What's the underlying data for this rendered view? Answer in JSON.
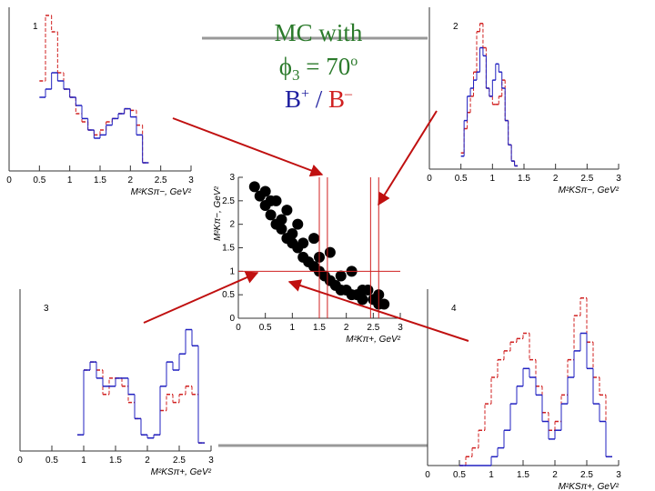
{
  "header": {
    "line1": "MC with",
    "phi": "ϕ",
    "phi_sub": "3",
    "phi_rest": " = 70",
    "phi_sup": "o",
    "b_plus": "B",
    "b_plus_sup": "+",
    "slash": " / ",
    "b_minus": "B",
    "b_minus_sup": "–"
  },
  "chart_data": [
    {
      "type": "histogram",
      "label": "1",
      "xlabel": "M²KSπ−, GeV²",
      "xlim": [
        0,
        3
      ],
      "ylim": [
        0,
        1
      ],
      "xticks": [
        0,
        0.5,
        1,
        1.5,
        2,
        2.5,
        3
      ],
      "bins": [
        0.5,
        0.6,
        0.7,
        0.8,
        0.9,
        1.0,
        1.1,
        1.2,
        1.3,
        1.4,
        1.5,
        1.6,
        1.7,
        1.8,
        1.9,
        2.0,
        2.1,
        2.2,
        2.3
      ],
      "series": [
        {
          "color": "#d02020",
          "values": [
            0.55,
            0.95,
            0.85,
            0.6,
            0.5,
            0.45,
            0.35,
            0.3,
            0.25,
            0.22,
            0.25,
            0.3,
            0.32,
            0.35,
            0.38,
            0.37,
            0.28,
            0.05
          ]
        },
        {
          "color": "#2020c0",
          "values": [
            0.45,
            0.5,
            0.6,
            0.55,
            0.5,
            0.45,
            0.4,
            0.32,
            0.25,
            0.2,
            0.22,
            0.28,
            0.32,
            0.35,
            0.38,
            0.33,
            0.22,
            0.05
          ]
        }
      ]
    },
    {
      "type": "histogram",
      "label": "2",
      "xlabel": "M²KSπ−, GeV²",
      "xlim": [
        0,
        3
      ],
      "ylim": [
        0,
        1
      ],
      "xticks": [
        0,
        0.5,
        1,
        1.5,
        2,
        2.5,
        3
      ],
      "bins": [
        0.5,
        0.55,
        0.6,
        0.65,
        0.7,
        0.75,
        0.8,
        0.85,
        0.9,
        0.95,
        1.0,
        1.05,
        1.1,
        1.15,
        1.2,
        1.25,
        1.3,
        1.35,
        1.4
      ],
      "series": [
        {
          "color": "#d02020",
          "values": [
            0.1,
            0.25,
            0.35,
            0.45,
            0.6,
            0.85,
            0.9,
            0.75,
            0.5,
            0.45,
            0.4,
            0.4,
            0.45,
            0.55,
            0.3,
            0.15,
            0.05,
            0.02
          ]
        },
        {
          "color": "#2020c0",
          "values": [
            0.08,
            0.3,
            0.45,
            0.5,
            0.55,
            0.6,
            0.75,
            0.7,
            0.5,
            0.45,
            0.55,
            0.65,
            0.6,
            0.5,
            0.3,
            0.15,
            0.05,
            0.02
          ]
        }
      ]
    },
    {
      "type": "histogram",
      "label": "3",
      "xlabel": "M²KSπ+, GeV²",
      "xlim": [
        0,
        3
      ],
      "ylim": [
        0,
        1
      ],
      "xticks": [
        0,
        0.5,
        1,
        1.5,
        2,
        2.5,
        3
      ],
      "bins": [
        0.9,
        1.0,
        1.1,
        1.2,
        1.3,
        1.4,
        1.5,
        1.6,
        1.7,
        1.8,
        1.9,
        2.0,
        2.1,
        2.2,
        2.3,
        2.4,
        2.5,
        2.6,
        2.7,
        2.8,
        2.9
      ],
      "series": [
        {
          "color": "#d02020",
          "values": [
            0.1,
            0.5,
            0.55,
            0.5,
            0.35,
            0.45,
            0.45,
            0.4,
            0.3,
            0.2,
            0.1,
            0.08,
            0.1,
            0.25,
            0.35,
            0.3,
            0.35,
            0.4,
            0.35,
            0.05
          ]
        },
        {
          "color": "#2020c0",
          "values": [
            0.1,
            0.5,
            0.55,
            0.45,
            0.4,
            0.4,
            0.45,
            0.45,
            0.35,
            0.2,
            0.1,
            0.08,
            0.1,
            0.4,
            0.55,
            0.5,
            0.6,
            0.75,
            0.65,
            0.05
          ]
        }
      ]
    },
    {
      "type": "histogram",
      "label": "4",
      "xlabel": "M²KSπ+, GeV²",
      "xlim": [
        0,
        3
      ],
      "ylim": [
        0,
        1
      ],
      "xticks": [
        0,
        0.5,
        1,
        1.5,
        2,
        2.5,
        3
      ],
      "bins": [
        0.5,
        0.6,
        0.7,
        0.8,
        0.9,
        1.0,
        1.1,
        1.2,
        1.3,
        1.4,
        1.5,
        1.6,
        1.7,
        1.8,
        1.9,
        2.0,
        2.1,
        2.2,
        2.3,
        2.4,
        2.5,
        2.6,
        2.7,
        2.8,
        2.9
      ],
      "series": [
        {
          "color": "#d02020",
          "values": [
            0,
            0.05,
            0.1,
            0.2,
            0.35,
            0.5,
            0.6,
            0.65,
            0.7,
            0.72,
            0.75,
            0.6,
            0.45,
            0.3,
            0.2,
            0.25,
            0.4,
            0.6,
            0.85,
            0.95,
            0.7,
            0.5,
            0.4,
            0.05
          ]
        },
        {
          "color": "#2020c0",
          "values": [
            0,
            0,
            0,
            0,
            0,
            0.05,
            0.1,
            0.2,
            0.35,
            0.45,
            0.55,
            0.5,
            0.4,
            0.25,
            0.15,
            0.2,
            0.35,
            0.5,
            0.65,
            0.75,
            0.55,
            0.35,
            0.25,
            0.05
          ]
        }
      ]
    },
    {
      "type": "scatter",
      "xlabel": "M²Kπ+, GeV²",
      "ylabel": "M²Kπ−, GeV²",
      "xlim": [
        0,
        3
      ],
      "ylim": [
        0,
        3
      ],
      "xticks": [
        0,
        0.5,
        1,
        1.5,
        2,
        2.5,
        3
      ],
      "yticks": [
        0,
        0.5,
        1,
        1.5,
        2,
        2.5,
        3
      ],
      "color": "#000000",
      "line_color": "#d02020",
      "x": [
        0.3,
        0.4,
        0.5,
        0.5,
        0.6,
        0.7,
        0.7,
        0.8,
        0.9,
        0.9,
        1.0,
        1.1,
        1.1,
        1.2,
        1.3,
        1.4,
        1.4,
        1.5,
        1.6,
        1.7,
        1.7,
        1.8,
        1.9,
        2.0,
        2.1,
        2.1,
        2.2,
        2.3,
        2.4,
        2.5,
        2.6,
        2.7,
        0.6,
        0.8,
        1.0,
        1.2,
        1.5,
        1.9,
        2.3,
        2.6
      ],
      "y": [
        2.8,
        2.6,
        2.4,
        2.7,
        2.2,
        2.0,
        2.5,
        1.9,
        1.7,
        2.3,
        1.6,
        1.5,
        2.0,
        1.3,
        1.2,
        1.1,
        1.7,
        1.0,
        0.9,
        0.8,
        1.4,
        0.7,
        0.6,
        0.6,
        0.5,
        1.0,
        0.5,
        0.4,
        0.6,
        0.4,
        0.3,
        0.3,
        2.5,
        2.1,
        1.8,
        1.6,
        1.3,
        0.9,
        0.6,
        0.5
      ],
      "vlines": [
        1.5,
        1.65,
        2.45,
        2.6
      ],
      "hlines": [
        1
      ]
    }
  ]
}
